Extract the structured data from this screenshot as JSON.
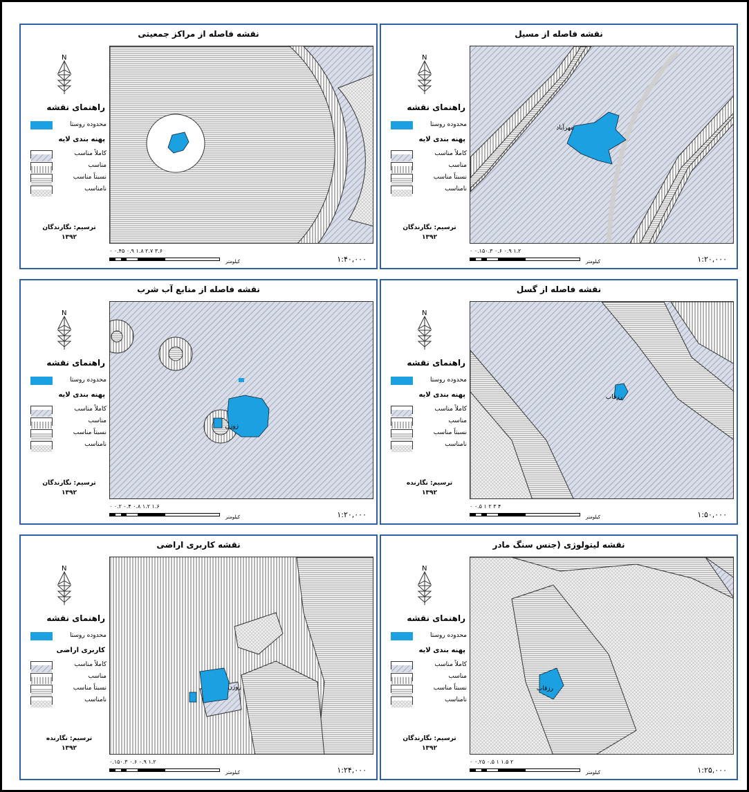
{
  "common": {
    "north_label": "N",
    "legend_title": "راهنمای نقشه",
    "village_label": "محدوده روستا",
    "class_labels": [
      "کاملاً مناسب",
      "مناسب",
      "نسبتاً مناسب",
      "نامناسب"
    ],
    "unit": "کیلومتر",
    "year": "۱۳۹۲",
    "accent": "#2d5fa3",
    "village_color": "#1ba1e2"
  },
  "panels": [
    {
      "title": "نقشه فاصله از مراکز جمعیتی",
      "legend_title": "راهنمای نقشه",
      "layer_title": "پهنه بندی لایه",
      "credit": "ترسیم: نگارندگان",
      "ticks": "۰ ۰.۴۵ ۰.۹  ۱.۸  ۲.۷  ۳.۶",
      "ratio": "۱:۴۰,۰۰۰",
      "village": ""
    },
    {
      "title": "نقشه فاصله از مسیل",
      "legend_title": "راهنمای نقشه",
      "layer_title": "پهنه بندی لایه",
      "credit": "ترسیم: نگارندگان",
      "ticks": "۰ ۰.۱۵۰.۳  ۰.۶  ۰.۹  ۱.۲",
      "ratio": "۱:۲۰,۰۰۰",
      "village": "مهرآباد"
    },
    {
      "title": "نقشه فاصله از منابع آب شرب",
      "legend_title": "راهنمای نقشه",
      "layer_title": "پهنه بندی لایه",
      "credit": "ترسیم: نگارندگان",
      "ticks": "۰ ۰.۲ ۰.۴  ۰.۸  ۱.۲  ۱.۶",
      "ratio": "۱:۲۰,۰۰۰",
      "village": "زوزن"
    },
    {
      "title": "نقشه فاصله از گسل",
      "legend_title": "راهنمای نقشه",
      "layer_title": "پهنه بندی لایه",
      "credit": "ترسیم: نگارنده",
      "ticks": "۰ ۰.۵ ۱  ۲  ۳  ۴",
      "ratio": "۱:۵۰,۰۰۰",
      "village": "رزقاب"
    },
    {
      "title": "نقشه کاربری اراضی",
      "legend_title": "راهنمای نقشه",
      "layer_title": "کاربری اراضی",
      "credit": "ترسیم: نگارنده",
      "ticks": "۰.۱۵۰.۳  ۰.۶  ۰.۹  ۱.۲",
      "ratio": "۱:۲۴,۰۰۰",
      "village": "زوزن"
    },
    {
      "title": "نقشه لیتولوژی (جنس سنگ مادر",
      "legend_title": "راهنمای نقشه",
      "layer_title": "پهنه بندی لایه",
      "credit": "ترسیم: نگارندگان",
      "ticks": "۰ ۰.۲۵ ۰.۵  ۱  ۱.۵  ۲",
      "ratio": "۱:۲۵,۰۰۰",
      "village": "رزقاب"
    }
  ]
}
